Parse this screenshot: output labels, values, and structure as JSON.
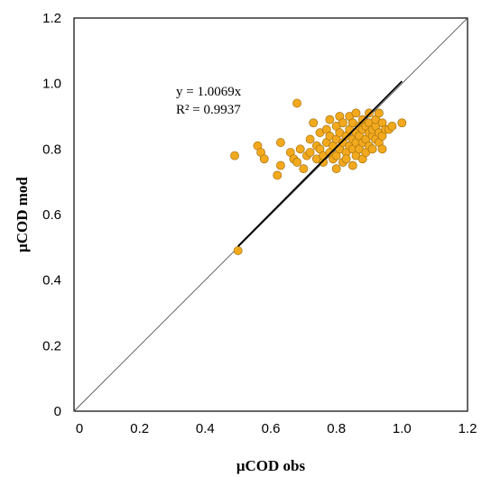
{
  "chart_data": {
    "type": "scatter",
    "xlabel": "μCOD obs",
    "ylabel": "μCOD mod",
    "xlim": [
      0,
      1.2
    ],
    "ylim": [
      0,
      1.2
    ],
    "x_ticks": [
      "0",
      "0.2",
      "0.4",
      "0.6",
      "0.8",
      "1.0",
      "1.2"
    ],
    "y_ticks": [
      "0",
      "0.2",
      "0.4",
      "0.6",
      "0.8",
      "1.0",
      "1.2"
    ],
    "x_tick_values": [
      0,
      0.2,
      0.4,
      0.6,
      0.8,
      1.0,
      1.2
    ],
    "y_tick_values": [
      0,
      0.2,
      0.4,
      0.6,
      0.8,
      1.0,
      1.2
    ],
    "grid": false,
    "legend": "none",
    "annotations": [
      "y = 1.0069x",
      "R² = 0.9937"
    ],
    "colors": {
      "point_fill": "#F2A91E",
      "point_stroke": "#9A6A0A",
      "trendline": "#000000",
      "identity_line": "#555555"
    },
    "identity_line": {
      "x": [
        0,
        1.2
      ],
      "y": [
        0,
        1.2
      ]
    },
    "trendline": {
      "slope": 1.0069,
      "x": [
        0.5,
        1.0
      ]
    },
    "series": [
      {
        "points": [
          [
            0.5,
            0.49
          ],
          [
            0.49,
            0.78
          ],
          [
            0.56,
            0.81
          ],
          [
            0.57,
            0.79
          ],
          [
            0.58,
            0.77
          ],
          [
            0.62,
            0.72
          ],
          [
            0.63,
            0.75
          ],
          [
            0.63,
            0.82
          ],
          [
            0.66,
            0.79
          ],
          [
            0.67,
            0.77
          ],
          [
            0.68,
            0.94
          ],
          [
            0.68,
            0.76
          ],
          [
            0.69,
            0.8
          ],
          [
            0.7,
            0.74
          ],
          [
            0.71,
            0.78
          ],
          [
            0.72,
            0.79
          ],
          [
            0.72,
            0.83
          ],
          [
            0.73,
            0.88
          ],
          [
            0.74,
            0.77
          ],
          [
            0.74,
            0.81
          ],
          [
            0.75,
            0.8
          ],
          [
            0.75,
            0.85
          ],
          [
            0.76,
            0.76
          ],
          [
            0.76,
            0.78
          ],
          [
            0.77,
            0.82
          ],
          [
            0.77,
            0.86
          ],
          [
            0.78,
            0.79
          ],
          [
            0.78,
            0.84
          ],
          [
            0.78,
            0.89
          ],
          [
            0.79,
            0.77
          ],
          [
            0.79,
            0.81
          ],
          [
            0.8,
            0.74
          ],
          [
            0.8,
            0.78
          ],
          [
            0.8,
            0.83
          ],
          [
            0.8,
            0.87
          ],
          [
            0.81,
            0.8
          ],
          [
            0.81,
            0.85
          ],
          [
            0.81,
            0.9
          ],
          [
            0.82,
            0.76
          ],
          [
            0.82,
            0.82
          ],
          [
            0.82,
            0.88
          ],
          [
            0.83,
            0.79
          ],
          [
            0.83,
            0.84
          ],
          [
            0.83,
            0.77
          ],
          [
            0.84,
            0.81
          ],
          [
            0.84,
            0.86
          ],
          [
            0.84,
            0.9
          ],
          [
            0.85,
            0.75
          ],
          [
            0.85,
            0.8
          ],
          [
            0.85,
            0.83
          ],
          [
            0.85,
            0.88
          ],
          [
            0.86,
            0.78
          ],
          [
            0.86,
            0.82
          ],
          [
            0.86,
            0.85
          ],
          [
            0.86,
            0.91
          ],
          [
            0.87,
            0.8
          ],
          [
            0.87,
            0.84
          ],
          [
            0.87,
            0.87
          ],
          [
            0.88,
            0.77
          ],
          [
            0.88,
            0.82
          ],
          [
            0.88,
            0.86
          ],
          [
            0.88,
            0.89
          ],
          [
            0.89,
            0.79
          ],
          [
            0.89,
            0.83
          ],
          [
            0.89,
            0.87
          ],
          [
            0.9,
            0.81
          ],
          [
            0.9,
            0.85
          ],
          [
            0.9,
            0.88
          ],
          [
            0.9,
            0.91
          ],
          [
            0.91,
            0.8
          ],
          [
            0.91,
            0.84
          ],
          [
            0.91,
            0.86
          ],
          [
            0.92,
            0.83
          ],
          [
            0.92,
            0.87
          ],
          [
            0.92,
            0.89
          ],
          [
            0.93,
            0.82
          ],
          [
            0.93,
            0.85
          ],
          [
            0.93,
            0.91
          ],
          [
            0.94,
            0.8
          ],
          [
            0.94,
            0.84
          ],
          [
            0.94,
            0.88
          ],
          [
            0.95,
            0.86
          ],
          [
            0.96,
            0.86
          ],
          [
            0.97,
            0.87
          ],
          [
            1.0,
            0.88
          ]
        ]
      }
    ]
  }
}
